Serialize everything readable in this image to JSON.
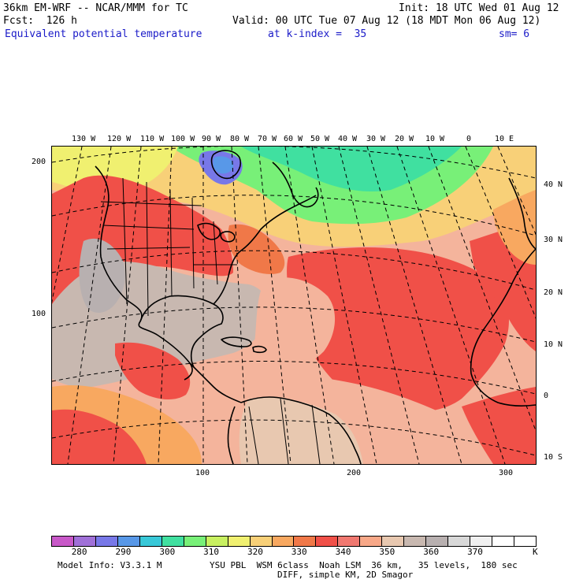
{
  "header": {
    "model": "36km EM-WRF -- NCAR/MMM for TC",
    "init": "Init: 18 UTC Wed 01 Aug 12",
    "fcst": "Fcst:  126 h",
    "valid": "Valid: 00 UTC Tue 07 Aug 12 (18 MDT Mon 06 Aug 12)",
    "field": "Equivalent potential temperature",
    "kindex": "at k-index =  35",
    "smooth": "sm= 6"
  },
  "map": {
    "lon_labels": [
      "130 W",
      "120 W",
      "110 W",
      "100 W",
      "90 W",
      "80 W",
      "70 W",
      "60 W",
      "50 W",
      "40 W",
      "30 W",
      "20 W",
      "10 W",
      "0",
      "10 E"
    ],
    "lat_labels": [
      "40 N",
      "30 N",
      "20 N",
      "10 N",
      "0",
      "10 S"
    ],
    "y_grid_labels": [
      "200",
      "100"
    ],
    "x_grid_labels": [
      "100",
      "200",
      "300"
    ]
  },
  "colorbar": {
    "colors": [
      "#c858c8",
      "#a070d8",
      "#7878e8",
      "#5898e8",
      "#38c8d8",
      "#40e0a0",
      "#78f078",
      "#c8f060",
      "#f0f070",
      "#f8d078",
      "#f8a860",
      "#f07848",
      "#f05048",
      "#f07870",
      "#f8a888",
      "#e8c8b0",
      "#c8b8b0",
      "#b8b0b0",
      "#d8d8d8",
      "#f0f0f0",
      "#ffffff",
      "#ffffff"
    ],
    "labels": [
      "280",
      "290",
      "300",
      "310",
      "320",
      "330",
      "340",
      "350",
      "360",
      "370"
    ],
    "unit": "K"
  },
  "footer": {
    "info": "Model Info: V3.3.1 M",
    "physics": "YSU PBL  WSM 6class  Noah LSM  36 km,   35 levels,  180 sec",
    "diff": "DIFF, simple KM, 2D Smagor"
  }
}
